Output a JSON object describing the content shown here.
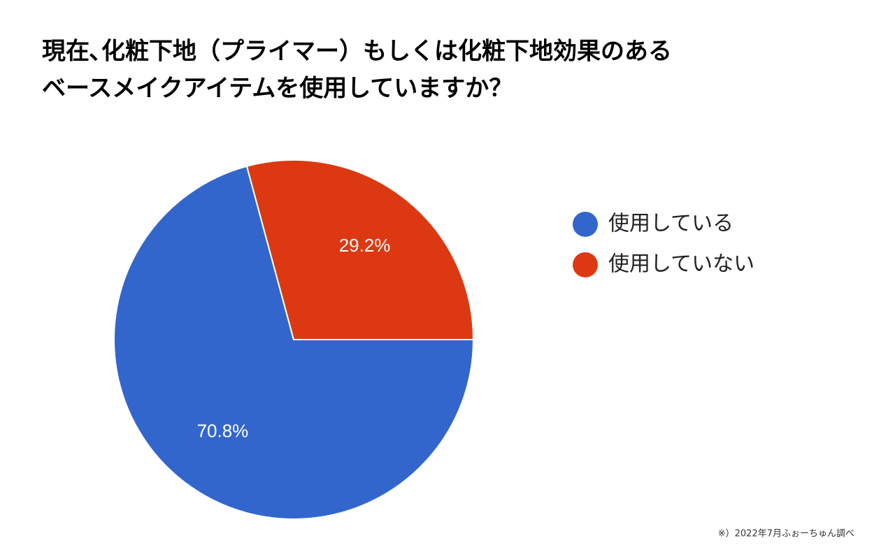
{
  "chart_data": {
    "type": "pie",
    "title": [
      "現在､化粧下地（プライマー）もしくは化粧下地効果のある",
      "ベースメイクアイテムを使用していますか？"
    ],
    "categories": [
      "使用している",
      "使用していない"
    ],
    "values": [
      70.8,
      29.2
    ],
    "value_labels": [
      "70.8%",
      "29.2%"
    ],
    "colors": [
      "#3366cc",
      "#dc3912"
    ],
    "legend": "right",
    "source": "※）2022年7月ふぉーちゅん調べ"
  }
}
